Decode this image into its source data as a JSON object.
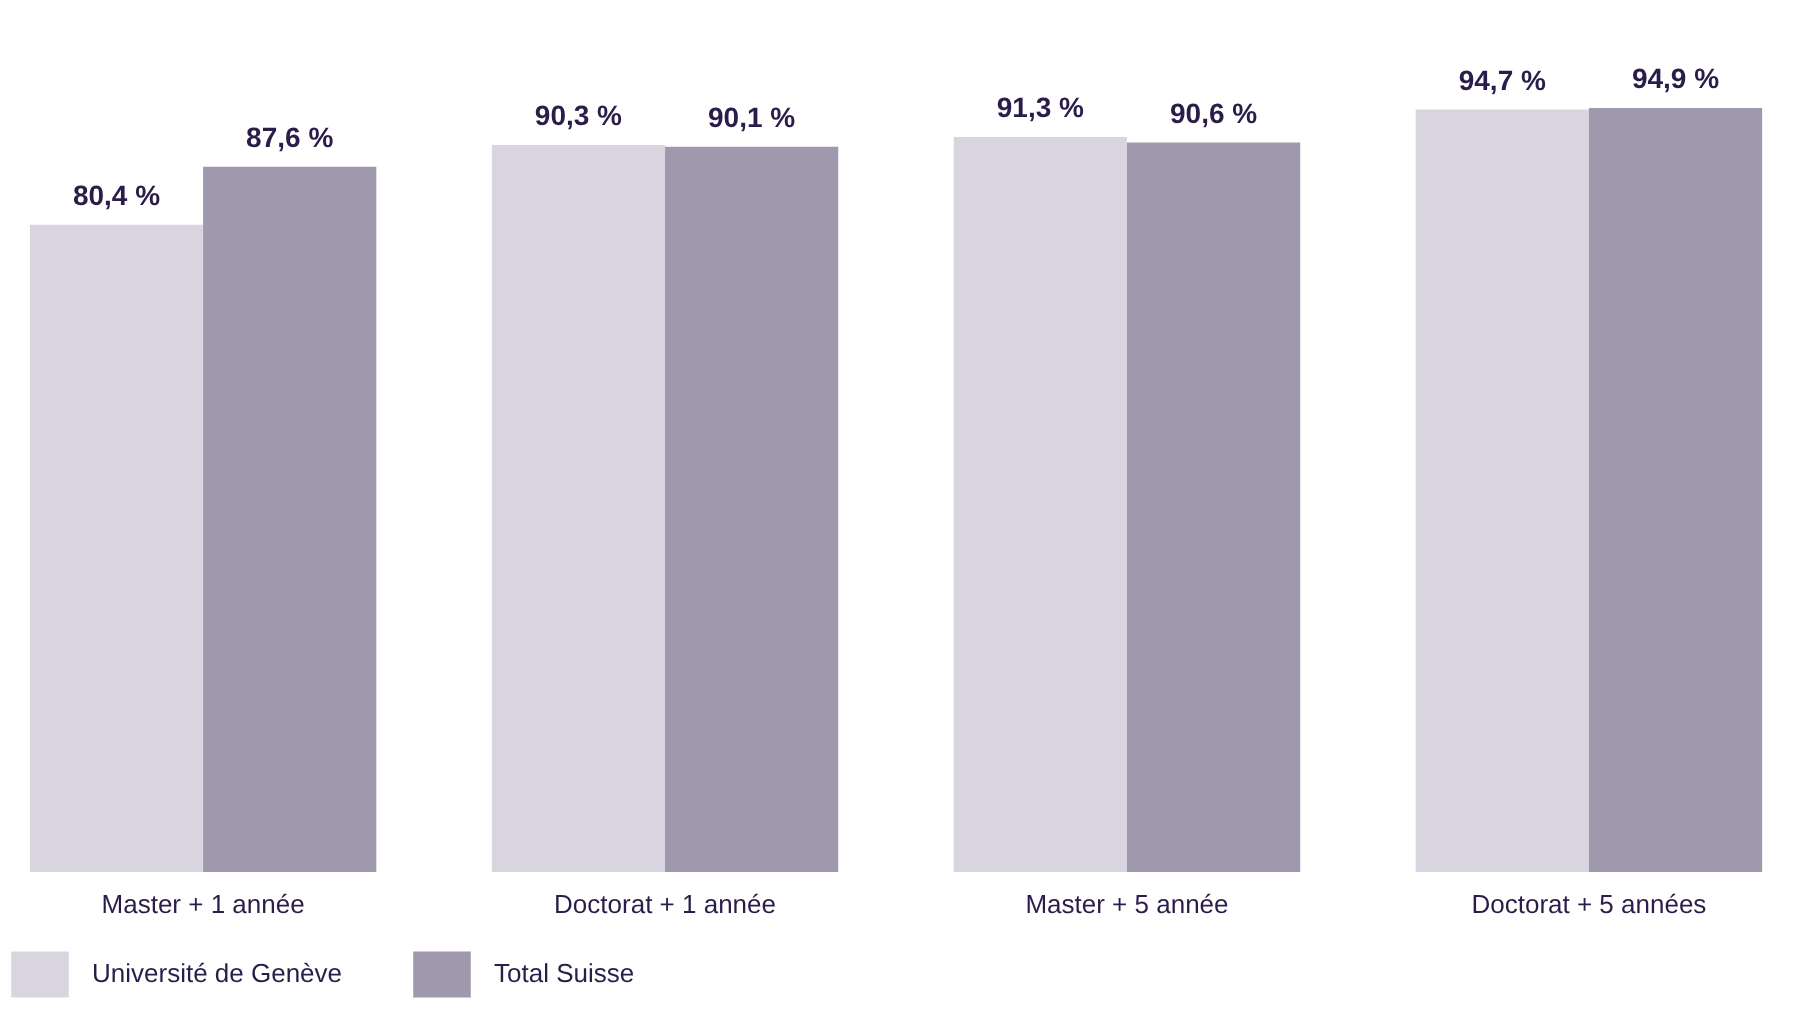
{
  "chart_data": {
    "type": "bar",
    "categories": [
      "Master + 1 année",
      "Doctorat + 1 année",
      "Master + 5 année",
      "Doctorat + 5 années"
    ],
    "series": [
      {
        "name": "Université de Genève",
        "color": "#d8d5e0",
        "values": [
          80.4,
          90.3,
          91.3,
          94.7
        ],
        "value_labels": [
          "80,4 %",
          "90,3 %",
          "91,3 %",
          "94,7 %"
        ]
      },
      {
        "name": "Total Suisse",
        "color": "#a098ad",
        "values": [
          87.6,
          90.1,
          90.6,
          94.9
        ],
        "value_labels": [
          "87,6 %",
          "90,1 %",
          "90,6 %",
          "94,9 %"
        ]
      }
    ],
    "tick_labels": "x",
    "legend": "bottom left"
  }
}
